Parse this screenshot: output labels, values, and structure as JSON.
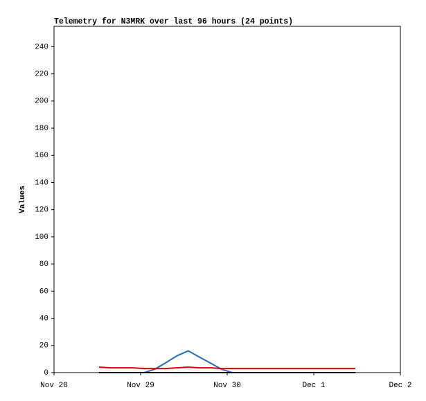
{
  "chart_data": {
    "type": "line",
    "title": "Telemetry for N3MRK over last 96 hours (24 points)",
    "y_label": "Values",
    "x": [
      0.52,
      0.65,
      0.78,
      0.91,
      1.04,
      1.16,
      1.29,
      1.42,
      1.55,
      1.68,
      1.81,
      1.94,
      2.06,
      2.19,
      2.32,
      2.45,
      2.58,
      2.71,
      2.84,
      2.97,
      3.09,
      3.22,
      3.35,
      3.48
    ],
    "series": [
      {
        "name": "Blue",
        "color": "#1f6fbf",
        "values": [
          0,
          0,
          0,
          0,
          0,
          2.4,
          7.2,
          12.4,
          16,
          11.4,
          6.9,
          2.3,
          0,
          0,
          0,
          0,
          0,
          0,
          0,
          0,
          0,
          0,
          0,
          0
        ]
      },
      {
        "name": "Red",
        "color": "#e00000",
        "values": [
          4,
          3.5,
          3.5,
          3.5,
          3,
          3,
          3,
          3.5,
          4,
          3.5,
          3.5,
          3,
          3,
          3,
          3,
          3,
          3,
          3,
          3,
          3,
          3,
          3,
          3,
          3
        ]
      },
      {
        "name": "Black",
        "color": "#000000",
        "values": [
          0,
          0,
          0,
          0,
          0,
          0,
          0,
          0,
          0,
          0,
          0,
          0,
          0,
          0,
          0,
          0,
          0,
          0,
          0,
          0,
          0,
          0,
          0,
          0
        ]
      }
    ],
    "xlim": [
      0,
      4
    ],
    "xticks": [
      {
        "value": 0,
        "label": "Nov 28"
      },
      {
        "value": 1,
        "label": "Nov 29"
      },
      {
        "value": 2,
        "label": "Nov 30"
      },
      {
        "value": 3,
        "label": "Dec 1"
      },
      {
        "value": 4,
        "label": "Dec 2"
      }
    ],
    "ylim": [
      0,
      255
    ],
    "yticks": [
      0,
      20,
      40,
      60,
      80,
      100,
      120,
      140,
      160,
      180,
      200,
      220,
      240
    ]
  }
}
